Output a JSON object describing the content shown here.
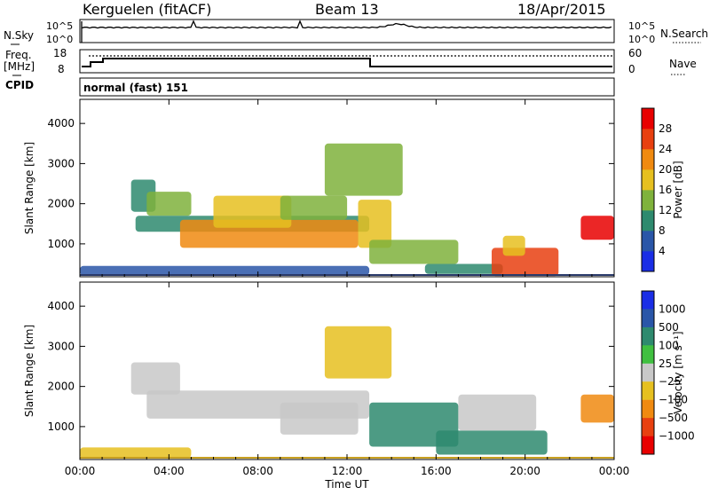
{
  "header": {
    "station": "Kerguelen (fitACF)",
    "beam": "Beam 13",
    "date": "18/Apr/2015"
  },
  "nsky_panel": {
    "left_label": "N.Sky",
    "right_label": "N.Search",
    "tick_top": "10^5",
    "tick_bottom": "10^0"
  },
  "freq_panel": {
    "left_label_1": "Freq.",
    "left_label_2": "[MHz]",
    "right_label": "Nave",
    "cpid_label": "CPID",
    "left_tick_top": "18",
    "left_tick_bottom": "8",
    "right_tick_top": "60",
    "right_tick_bottom": "0"
  },
  "mode_label": "normal (fast) 151",
  "chart_data": [
    {
      "type": "heatmap",
      "panel": "power",
      "ylabel": "Slant Range [km]",
      "xlabel": "Time UT",
      "x_ticks": [
        "00:00",
        "04:00",
        "08:00",
        "12:00",
        "16:00",
        "20:00",
        "00:00"
      ],
      "y_ticks": [
        "1000",
        "2000",
        "3000",
        "4000"
      ],
      "x_range_hours": [
        0,
        24
      ],
      "ylim": [
        180,
        4600
      ],
      "colorbar": {
        "label": "Power [dB]",
        "ticks": [
          "4",
          "8",
          "12",
          "16",
          "20",
          "24",
          "28"
        ],
        "range": [
          0,
          30
        ],
        "colors": [
          "#1a2ee6",
          "#2a56a8",
          "#2e8a6e",
          "#7fb23c",
          "#e6c020",
          "#f08a10",
          "#e84010",
          "#e80000"
        ]
      },
      "regions": [
        {
          "t0": 0.0,
          "t1": 13.0,
          "r0": 220,
          "r1": 450,
          "value": 6
        },
        {
          "t0": 2.3,
          "t1": 3.4,
          "r0": 1800,
          "r1": 2600,
          "value": 10
        },
        {
          "t0": 3.0,
          "t1": 5.0,
          "r0": 1700,
          "r1": 2300,
          "value": 14
        },
        {
          "t0": 2.5,
          "t1": 13.0,
          "r0": 1300,
          "r1": 1700,
          "value": 8
        },
        {
          "t0": 4.5,
          "t1": 12.5,
          "r0": 900,
          "r1": 1600,
          "value": 22
        },
        {
          "t0": 6.0,
          "t1": 9.5,
          "r0": 1400,
          "r1": 2200,
          "value": 16
        },
        {
          "t0": 9.0,
          "t1": 12.0,
          "r0": 1600,
          "r1": 2200,
          "value": 12
        },
        {
          "t0": 11.0,
          "t1": 14.5,
          "r0": 2200,
          "r1": 3500,
          "value": 14
        },
        {
          "t0": 12.5,
          "t1": 14.0,
          "r0": 900,
          "r1": 2100,
          "value": 18
        },
        {
          "t0": 13.0,
          "t1": 17.0,
          "r0": 500,
          "r1": 1100,
          "value": 12
        },
        {
          "t0": 15.5,
          "t1": 19.0,
          "r0": 250,
          "r1": 500,
          "value": 8
        },
        {
          "t0": 18.5,
          "t1": 21.5,
          "r0": 200,
          "r1": 900,
          "value": 26
        },
        {
          "t0": 19.0,
          "t1": 20.0,
          "r0": 700,
          "r1": 1200,
          "value": 18
        },
        {
          "t0": 22.5,
          "t1": 24.0,
          "r0": 1100,
          "r1": 1700,
          "value": 28
        }
      ]
    },
    {
      "type": "heatmap",
      "panel": "velocity",
      "ylabel": "Slant Range [km]",
      "xlabel": "Time UT",
      "x_ticks": [
        "00:00",
        "04:00",
        "08:00",
        "12:00",
        "16:00",
        "20:00",
        "00:00"
      ],
      "y_ticks": [
        "1000",
        "2000",
        "3000",
        "4000"
      ],
      "x_range_hours": [
        0,
        24
      ],
      "ylim": [
        180,
        4600
      ],
      "colorbar": {
        "label": "Velocity [m s⁻¹]",
        "ticks": [
          "1000",
          "500",
          "100",
          "25",
          "−25",
          "−100",
          "−500",
          "−1000"
        ],
        "colors": [
          "#1a2ee6",
          "#2a56a8",
          "#2e8a6e",
          "#40c040",
          "#c8c8c8",
          "#e6c020",
          "#f08a10",
          "#e84010",
          "#e80000"
        ]
      },
      "regions": [
        {
          "t0": 0.0,
          "t1": 5.0,
          "r0": 220,
          "r1": 480,
          "value": -100
        },
        {
          "t0": 2.3,
          "t1": 4.5,
          "r0": 1800,
          "r1": 2600,
          "value": 0
        },
        {
          "t0": 3.0,
          "t1": 13.0,
          "r0": 1200,
          "r1": 1900,
          "value": 0
        },
        {
          "t0": 9.0,
          "t1": 12.5,
          "r0": 800,
          "r1": 1600,
          "value": 0
        },
        {
          "t0": 11.0,
          "t1": 14.0,
          "r0": 2200,
          "r1": 3500,
          "value": -100
        },
        {
          "t0": 13.0,
          "t1": 17.0,
          "r0": 500,
          "r1": 1600,
          "value": 100
        },
        {
          "t0": 16.0,
          "t1": 21.0,
          "r0": 300,
          "r1": 900,
          "value": 100
        },
        {
          "t0": 17.0,
          "t1": 20.5,
          "r0": 900,
          "r1": 1800,
          "value": 0
        },
        {
          "t0": 22.5,
          "t1": 24.0,
          "r0": 1100,
          "r1": 1800,
          "value": -500
        }
      ]
    }
  ]
}
